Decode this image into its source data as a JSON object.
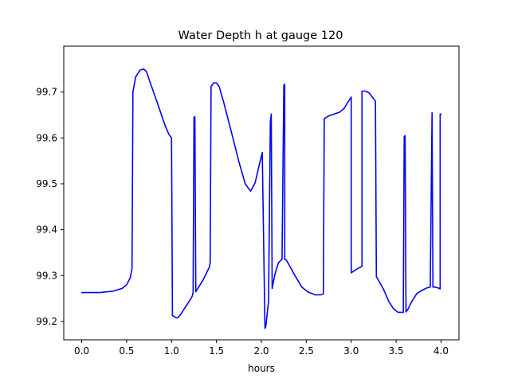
{
  "chart_data": {
    "type": "line",
    "title": "Water Depth h at gauge 120",
    "xlabel": "hours",
    "ylabel": "",
    "xlim": [
      -0.2,
      4.2
    ],
    "ylim": [
      99.16,
      99.8
    ],
    "x_ticks": [
      0.0,
      0.5,
      1.0,
      1.5,
      2.0,
      2.5,
      3.0,
      3.5,
      4.0
    ],
    "x_tick_labels": [
      "0.0",
      "0.5",
      "1.0",
      "1.5",
      "2.0",
      "2.5",
      "3.0",
      "3.5",
      "4.0"
    ],
    "y_ticks": [
      99.2,
      99.3,
      99.4,
      99.5,
      99.6,
      99.7
    ],
    "y_tick_labels": [
      "99.2",
      "99.3",
      "99.4",
      "99.5",
      "99.6",
      "99.7"
    ],
    "grid": false,
    "legend": "none",
    "series": [
      {
        "color": "#0000ff",
        "x": [
          0.0,
          0.2,
          0.35,
          0.45,
          0.5,
          0.54,
          0.56,
          0.57,
          0.57,
          0.6,
          0.65,
          0.69,
          0.72,
          0.76,
          0.85,
          0.93,
          0.97,
          1.0,
          1.01,
          1.01,
          1.05,
          1.07,
          1.1,
          1.2,
          1.23,
          1.24,
          1.25,
          1.26,
          1.27,
          1.27,
          1.35,
          1.42,
          1.43,
          1.44,
          1.47,
          1.5,
          1.53,
          1.58,
          1.67,
          1.75,
          1.82,
          1.88,
          1.93,
          1.97,
          2.01,
          2.04,
          2.05,
          2.08,
          2.1,
          2.11,
          2.12,
          2.12,
          2.15,
          2.19,
          2.23,
          2.25,
          2.26,
          2.26,
          2.27,
          2.28,
          2.3,
          2.38,
          2.45,
          2.52,
          2.6,
          2.66,
          2.69,
          2.7,
          2.7,
          2.75,
          2.87,
          2.92,
          2.96,
          3.0,
          3.0,
          3.07,
          3.1,
          3.12,
          3.12,
          3.16,
          3.2,
          3.27,
          3.28,
          3.36,
          3.42,
          3.47,
          3.52,
          3.55,
          3.58,
          3.59,
          3.6,
          3.61,
          3.61,
          3.63,
          3.67,
          3.73,
          3.79,
          3.84,
          3.88,
          3.9,
          3.91,
          3.91,
          3.93,
          3.97,
          3.99,
          3.99,
          4.0
        ],
        "y": [
          99.263,
          99.263,
          99.266,
          99.272,
          99.28,
          99.295,
          99.315,
          99.7,
          99.7,
          99.733,
          99.748,
          99.75,
          99.745,
          99.722,
          99.672,
          99.626,
          99.608,
          99.6,
          99.213,
          99.213,
          99.208,
          99.208,
          99.215,
          99.245,
          99.255,
          99.263,
          99.645,
          99.646,
          99.265,
          99.265,
          99.29,
          99.318,
          99.328,
          99.712,
          99.72,
          99.72,
          99.712,
          99.678,
          99.61,
          99.548,
          99.5,
          99.484,
          99.502,
          99.536,
          99.568,
          99.185,
          99.19,
          99.245,
          99.635,
          99.652,
          99.272,
          99.272,
          99.302,
          99.328,
          99.336,
          99.715,
          99.717,
          99.335,
          99.335,
          99.333,
          99.326,
          99.298,
          99.275,
          99.264,
          99.258,
          99.258,
          99.26,
          99.642,
          99.642,
          99.648,
          99.656,
          99.664,
          99.677,
          99.689,
          99.306,
          99.315,
          99.318,
          99.32,
          99.702,
          99.702,
          99.698,
          99.68,
          99.298,
          99.27,
          99.243,
          99.228,
          99.22,
          99.22,
          99.22,
          99.603,
          99.605,
          99.221,
          99.221,
          99.226,
          99.242,
          99.261,
          99.268,
          99.273,
          99.275,
          99.655,
          99.275,
          99.275,
          99.275,
          99.273,
          99.271,
          99.652,
          99.652
        ]
      }
    ]
  }
}
